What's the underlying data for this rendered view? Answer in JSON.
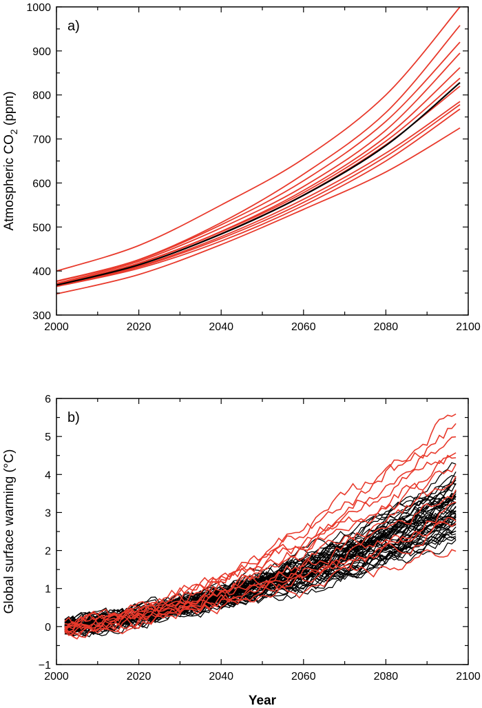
{
  "chart_data": [
    {
      "type": "line",
      "panel_label": "a)",
      "ylabel_prefix": "Atmospheric CO",
      "ylabel_sub": "2",
      "ylabel_suffix": " (ppm)",
      "xlabel": "",
      "xlim": [
        2000,
        2100
      ],
      "ylim": [
        300,
        1000
      ],
      "xticks": [
        2000,
        2020,
        2040,
        2060,
        2080,
        2100
      ],
      "xtick_labels": [
        "2000",
        "2020",
        "2040",
        "2060",
        "2080",
        "2100"
      ],
      "yticks": [
        300,
        400,
        500,
        600,
        700,
        800,
        900,
        1000
      ],
      "ytick_labels": [
        "300",
        "400",
        "500",
        "600",
        "700",
        "800",
        "900",
        "1000"
      ],
      "colors": {
        "ensemble": "#e8392b",
        "reference": "#000000"
      },
      "series": [
        {
          "name": "ensemble-1",
          "group": "red",
          "x": [
            2000,
            2020,
            2040,
            2060,
            2080,
            2098
          ],
          "y": [
            400,
            458,
            550,
            655,
            800,
            1000
          ]
        },
        {
          "name": "ensemble-2",
          "group": "red",
          "x": [
            2000,
            2020,
            2040,
            2060,
            2080,
            2098
          ],
          "y": [
            377,
            426,
            510,
            620,
            760,
            958
          ]
        },
        {
          "name": "ensemble-3",
          "group": "red",
          "x": [
            2000,
            2020,
            2040,
            2060,
            2080,
            2098
          ],
          "y": [
            376,
            425,
            505,
            605,
            740,
            920
          ]
        },
        {
          "name": "ensemble-4",
          "group": "red",
          "x": [
            2000,
            2020,
            2040,
            2060,
            2080,
            2098
          ],
          "y": [
            372,
            422,
            498,
            592,
            720,
            895
          ]
        },
        {
          "name": "ensemble-5",
          "group": "red",
          "x": [
            2000,
            2020,
            2040,
            2060,
            2080,
            2098
          ],
          "y": [
            370,
            418,
            490,
            583,
            705,
            862
          ]
        },
        {
          "name": "ensemble-6",
          "group": "red",
          "x": [
            2000,
            2020,
            2040,
            2060,
            2080,
            2098
          ],
          "y": [
            369,
            417,
            489,
            578,
            695,
            838
          ]
        },
        {
          "name": "ensemble-7",
          "group": "red",
          "x": [
            2000,
            2020,
            2040,
            2060,
            2080,
            2098
          ],
          "y": [
            368,
            414,
            485,
            573,
            687,
            820
          ]
        },
        {
          "name": "ensemble-8",
          "group": "red",
          "x": [
            2000,
            2020,
            2040,
            2060,
            2080,
            2098
          ],
          "y": [
            367,
            411,
            478,
            563,
            668,
            785
          ]
        },
        {
          "name": "ensemble-9",
          "group": "red",
          "x": [
            2000,
            2020,
            2040,
            2060,
            2080,
            2098
          ],
          "y": [
            366,
            409,
            474,
            556,
            660,
            778
          ]
        },
        {
          "name": "ensemble-10",
          "group": "red",
          "x": [
            2000,
            2020,
            2040,
            2060,
            2080,
            2098
          ],
          "y": [
            365,
            406,
            468,
            549,
            650,
            768
          ]
        },
        {
          "name": "ensemble-11",
          "group": "red",
          "x": [
            2000,
            2020,
            2040,
            2060,
            2080,
            2098
          ],
          "y": [
            348,
            392,
            460,
            540,
            625,
            725
          ]
        },
        {
          "name": "reference",
          "group": "black",
          "x": [
            2000,
            2020,
            2040,
            2060,
            2080,
            2098
          ],
          "y": [
            368,
            414,
            484,
            572,
            685,
            828
          ]
        }
      ]
    },
    {
      "type": "line",
      "panel_label": "b)",
      "ylabel": "Global surface warming (°C)",
      "xlabel": "Year",
      "xlim": [
        2000,
        2100
      ],
      "ylim": [
        -1,
        6
      ],
      "xticks": [
        2000,
        2020,
        2040,
        2060,
        2080,
        2100
      ],
      "xtick_labels": [
        "2000",
        "2020",
        "2040",
        "2060",
        "2080",
        "2100"
      ],
      "yticks": [
        -1,
        0,
        1,
        2,
        3,
        4,
        5,
        6
      ],
      "ytick_labels": [
        "−1",
        "0",
        "1",
        "2",
        "3",
        "4",
        "5",
        "6"
      ],
      "colors": {
        "ensemble": "#e8392b",
        "reference": "#000000"
      },
      "x_range": [
        2002,
        2097
      ],
      "black_ensemble": {
        "count": 48,
        "end_values": [
          2.3,
          2.45,
          2.6,
          2.75,
          2.85,
          2.95,
          3.05,
          3.12,
          3.2,
          3.28,
          3.35,
          3.42,
          3.5,
          3.6,
          3.75,
          3.95,
          4.05
        ]
      },
      "red_ensemble": [
        {
          "name": "ensemble-1",
          "end": 5.7
        },
        {
          "name": "ensemble-2",
          "end": 5.3
        },
        {
          "name": "ensemble-3",
          "end": 5.1
        },
        {
          "name": "ensemble-4",
          "end": 4.8
        },
        {
          "name": "ensemble-5",
          "end": 4.6
        },
        {
          "name": "ensemble-6",
          "end": 4.15
        },
        {
          "name": "ensemble-7",
          "end": 3.85
        },
        {
          "name": "ensemble-8",
          "end": 3.6
        },
        {
          "name": "ensemble-9",
          "end": 3.25
        },
        {
          "name": "ensemble-10",
          "end": 2.9
        },
        {
          "name": "ensemble-11",
          "end": 2.7
        },
        {
          "name": "ensemble-12",
          "end": 2.1
        }
      ]
    }
  ]
}
